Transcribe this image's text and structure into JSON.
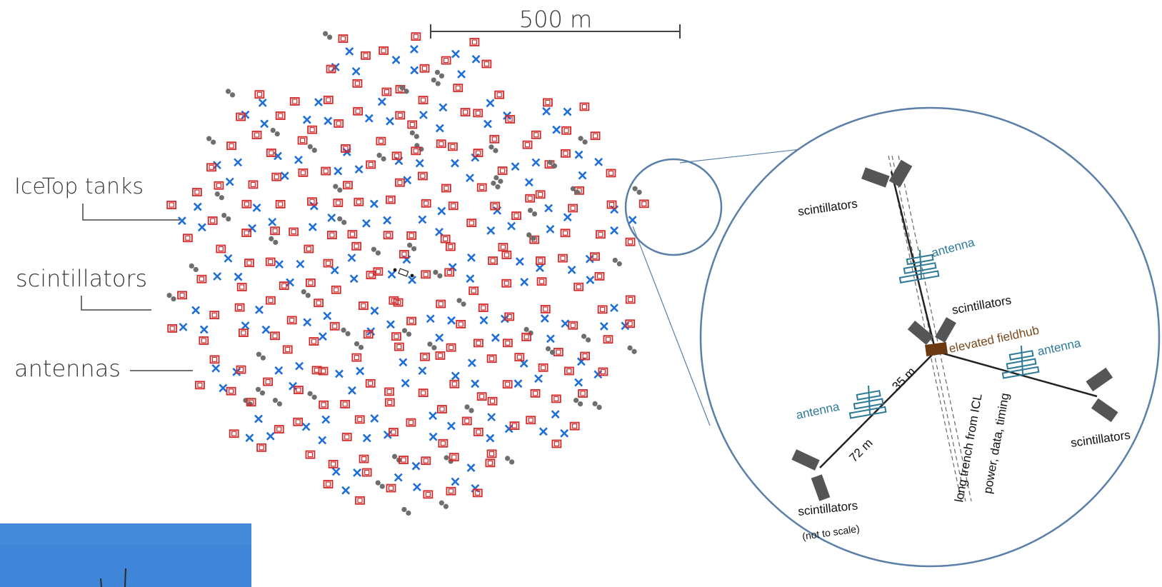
{
  "scale_bar": {
    "label": "500 m"
  },
  "legend": {
    "icetop": "IceTop tanks",
    "scintillators": "scintillators",
    "antennas": "antennas"
  },
  "inset": {
    "scint_top": "scintillators",
    "antenna_top": "antenna",
    "scint_center": "scintillators",
    "fieldhub": "elevated fieldhub",
    "antenna_right": "antenna",
    "antenna_left": "antenna",
    "dist_35": "35 m",
    "dist_72": "72 m",
    "trench_1": "long trench from ICL",
    "trench_2": "power, data, timing",
    "scint_right": "scintillators",
    "scint_bottom": "scintillators",
    "not_to_scale": "(not to scale)"
  },
  "colors": {
    "scintillator": "#d42a2a",
    "antenna": "#1f6fd6",
    "tank": "#6e6e6e",
    "inset_circle": "#5a7fa8",
    "fieldhub": "#6b3a12",
    "sky": "#3f86d8"
  }
}
